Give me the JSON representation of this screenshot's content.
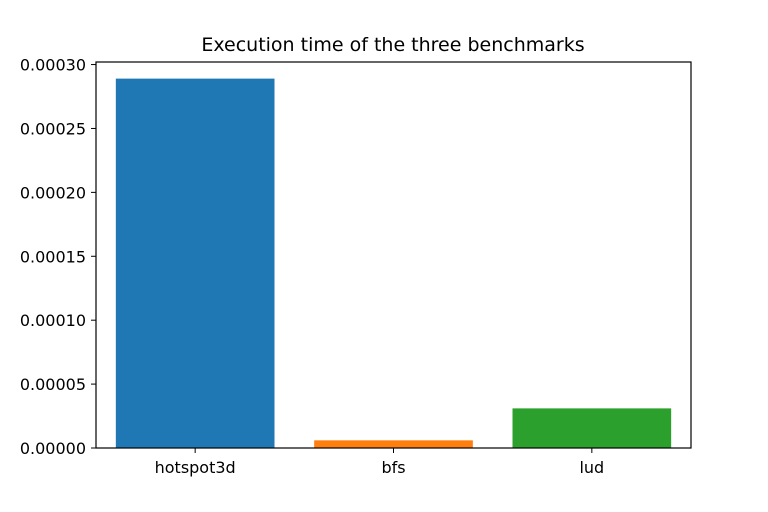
{
  "chart_data": {
    "type": "bar",
    "title": "Execution time of the three benchmarks",
    "xlabel": "",
    "ylabel": "",
    "categories": [
      "hotspot3d",
      "bfs",
      "lud"
    ],
    "values": [
      0.000289,
      6e-06,
      3.1e-05
    ],
    "colors": [
      "#1f77b4",
      "#ff7f0e",
      "#2ca02c"
    ],
    "ylim": [
      0,
      0.000302
    ],
    "yticks": [
      0,
      5e-05,
      0.0001,
      0.00015,
      0.0002,
      0.00025,
      0.0003
    ],
    "ytick_labels": [
      "0.00000",
      "0.00005",
      "0.00010",
      "0.00015",
      "0.00020",
      "0.00025",
      "0.00030"
    ],
    "grid": false,
    "legend": "none"
  }
}
